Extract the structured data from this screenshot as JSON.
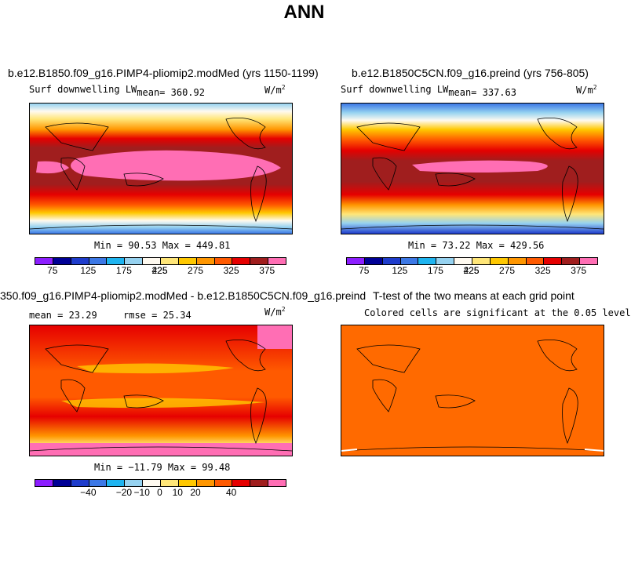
{
  "main_title": "ANN",
  "panels": {
    "p1": {
      "title": "b.e12.B1850.f09_g16.PIMP4-pliomip2.modMed (yrs 1150-1199)",
      "subtitle_prefix": "Surf downwelling LW",
      "mean_label": "mean= 360.92",
      "units": "W/m",
      "units_exp": "2",
      "stats": "Min =  90.53 Max = 449.81"
    },
    "p2": {
      "title": "b.e12.B1850C5CN.f09_g16.preind (yrs 756-805)",
      "subtitle_prefix": "Surf downwelling LW",
      "mean_label": "mean= 337.63",
      "units": "W/m",
      "units_exp": "2",
      "stats": "Min =  73.22 Max = 429.56"
    },
    "p3": {
      "title": "350.f09_g16.PIMP4-pliomip2.modMed - b.e12.B1850C5CN.f09_g16.preind",
      "mean_label": "mean =  23.29",
      "rmse_label": "rmse =  25.34",
      "units": "W/m",
      "units_exp": "2",
      "stats": "Min = −11.79 Max =  99.48"
    },
    "p4": {
      "title": "T-test of the two means at each grid point",
      "subtitle": "Colored cells are significant at the 0.05 level"
    }
  },
  "colorbar_abs": {
    "colors": [
      "#8c1eff",
      "#000096",
      "#1e3ccc",
      "#3c78e6",
      "#1eb4f0",
      "#96d2f0",
      "#fffaf0",
      "#ffe678",
      "#ffc800",
      "#ff9600",
      "#ff5a00",
      "#e60000",
      "#a01e1e",
      "#ff6eb4"
    ],
    "labels": [
      "75",
      "125",
      "175",
      "225",
      "275",
      "325",
      "375",
      "425"
    ]
  },
  "colorbar_diff": {
    "colors": [
      "#8c1eff",
      "#000096",
      "#1e3ccc",
      "#3c78e6",
      "#1eb4f0",
      "#96d2f0",
      "#fffaf0",
      "#ffe678",
      "#ffc800",
      "#ff9600",
      "#ff5a00",
      "#e60000",
      "#a01e1e",
      "#ff6eb4"
    ],
    "labels": [
      "−40",
      "−20",
      "−10",
      "0",
      "10",
      "20",
      "40"
    ]
  },
  "ttest_color": "#ff6a00"
}
